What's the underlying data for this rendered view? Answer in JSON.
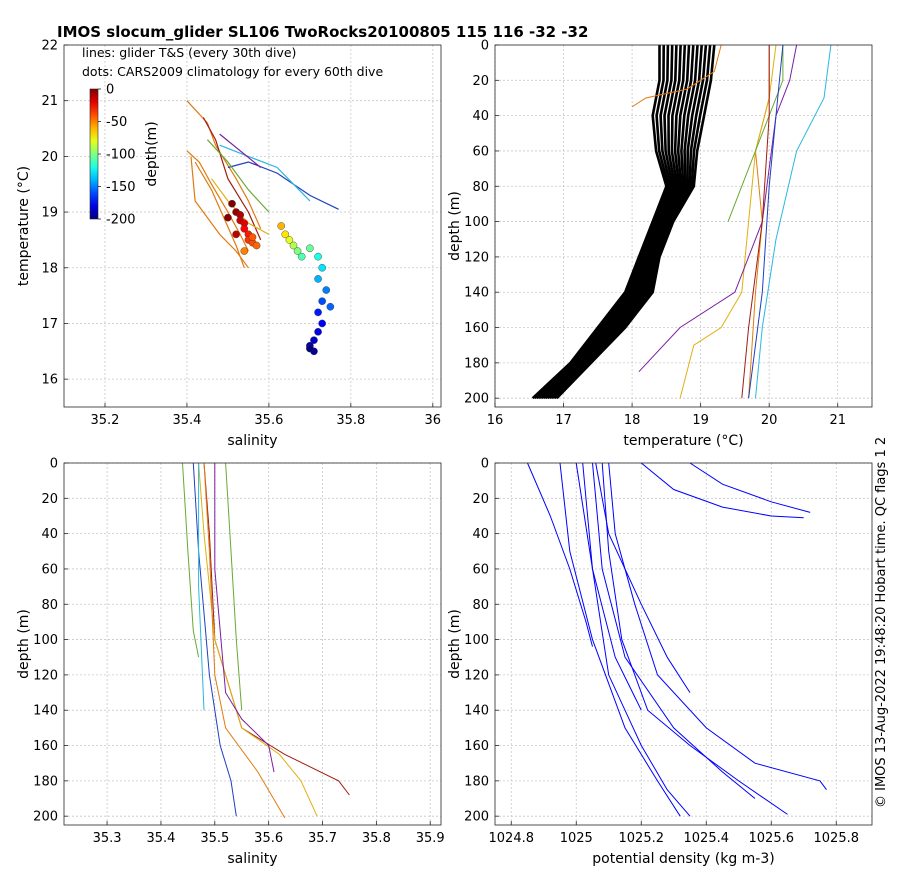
{
  "figure": {
    "title": "IMOS slocum_glider SL106 TwoRocks20100805 115  116  -32  -32",
    "side_note": "© IMOS 13-Aug-2022 19:48:20 Hobart time. QC flags 1  2"
  },
  "colors": {
    "glider_lines": [
      "#1f3fbf",
      "#e07b10",
      "#e0b010",
      "#7b1fa0",
      "#6aa832",
      "#2ab7e0",
      "#a01c10"
    ],
    "climatology_line": "#000000",
    "density_line": "#0000ff"
  },
  "chart_data": [
    {
      "id": "ts",
      "type": "scatter",
      "xlabel": "salinity",
      "ylabel": "temperature (°C)",
      "xlim": [
        35.1,
        36.02
      ],
      "ylim": [
        15.5,
        22
      ],
      "xticks": [
        35.2,
        35.4,
        35.6,
        35.8,
        36
      ],
      "yticks": [
        16,
        17,
        18,
        19,
        20,
        21,
        22
      ],
      "grid": true,
      "notes": [
        "lines: glider T&S (every 30th dive)",
        "dots: CARS2009 climatology for every 60th dive"
      ],
      "colorbar": {
        "label": "depth(m)",
        "ticks": [
          0,
          -50,
          -100,
          -150,
          -200
        ],
        "range": [
          -200,
          0
        ]
      },
      "series": [
        {
          "name": "glider T&S dive 1",
          "color": "#e07b10",
          "x": [
            35.4,
            35.45,
            35.47,
            35.52,
            35.55,
            35.58
          ],
          "y": [
            21.0,
            20.6,
            20.2,
            19.6,
            19.2,
            18.7
          ]
        },
        {
          "name": "glider T&S dive 2",
          "color": "#e07b10",
          "x": [
            35.4,
            35.43,
            35.46,
            35.5,
            35.53,
            35.55
          ],
          "y": [
            20.1,
            19.9,
            19.5,
            19.0,
            18.6,
            18.3
          ]
        },
        {
          "name": "glider T&S dive 3",
          "color": "#e07b10",
          "x": [
            35.41,
            35.42,
            35.45,
            35.48,
            35.52,
            35.55
          ],
          "y": [
            20.0,
            19.2,
            18.9,
            18.6,
            18.3,
            18.0
          ]
        },
        {
          "name": "glider T&S dive 4",
          "color": "#e07b10",
          "x": [
            35.42,
            35.46,
            35.49,
            35.52,
            35.54
          ],
          "y": [
            19.9,
            19.4,
            18.9,
            18.4,
            18.0
          ]
        },
        {
          "name": "glider T&S dive 5",
          "color": "#a01c10",
          "x": [
            35.44,
            35.47,
            35.5,
            35.55,
            35.58
          ],
          "y": [
            20.7,
            20.3,
            19.6,
            19.0,
            18.5
          ]
        },
        {
          "name": "glider T&S dive 6",
          "color": "#1f3fbf",
          "x": [
            35.5,
            35.55,
            35.62,
            35.7,
            35.77
          ],
          "y": [
            19.8,
            19.9,
            19.7,
            19.3,
            19.05
          ]
        },
        {
          "name": "glider T&S dive 7",
          "color": "#2ab7e0",
          "x": [
            35.48,
            35.55,
            35.62,
            35.66,
            35.7
          ],
          "y": [
            20.2,
            20.0,
            19.8,
            19.5,
            19.2
          ]
        },
        {
          "name": "glider T&S dive 8",
          "color": "#e0b010",
          "x": [
            35.46,
            35.5,
            35.55,
            35.6
          ],
          "y": [
            19.6,
            19.2,
            18.8,
            18.6
          ]
        },
        {
          "name": "glider T&S dive 9",
          "color": "#6aa832",
          "x": [
            35.45,
            35.5,
            35.55,
            35.6
          ],
          "y": [
            20.3,
            19.9,
            19.4,
            19.0
          ]
        },
        {
          "name": "glider T&S dive 10",
          "color": "#7b1fa0",
          "x": [
            35.48,
            35.53,
            35.58
          ],
          "y": [
            20.4,
            20.1,
            19.8
          ]
        }
      ],
      "climatology_dots": {
        "name": "CARS2009 climatology",
        "x": [
          35.51,
          35.52,
          35.53,
          35.53,
          35.54,
          35.54,
          35.55,
          35.55,
          35.56,
          35.57,
          35.52,
          35.5,
          35.54,
          35.56,
          35.63,
          35.64,
          35.65,
          35.66,
          35.67,
          35.68,
          35.7,
          35.72,
          35.73,
          35.72,
          35.74,
          35.73,
          35.75,
          35.72,
          35.73,
          35.72,
          35.71,
          35.7,
          35.71,
          35.7
        ],
        "y": [
          19.15,
          19.0,
          18.95,
          18.85,
          18.8,
          18.7,
          18.6,
          18.5,
          18.45,
          18.4,
          18.6,
          18.9,
          18.3,
          18.55,
          18.75,
          18.6,
          18.5,
          18.4,
          18.3,
          18.2,
          18.35,
          18.2,
          18.0,
          17.8,
          17.6,
          17.4,
          17.3,
          17.2,
          17.0,
          16.85,
          16.7,
          16.6,
          16.5,
          16.55
        ],
        "depth": [
          0,
          -5,
          -10,
          -15,
          -20,
          -25,
          -30,
          -35,
          -40,
          -45,
          -12,
          -2,
          -50,
          -42,
          -60,
          -70,
          -80,
          -90,
          -100,
          -110,
          -105,
          -120,
          -130,
          -140,
          -150,
          -160,
          -155,
          -170,
          -175,
          -180,
          -185,
          -190,
          -195,
          -200
        ]
      }
    },
    {
      "id": "temp_depth",
      "type": "line",
      "xlabel": "temperature (°C)",
      "ylabel": "depth (m)",
      "xlim": [
        16,
        21.5
      ],
      "ylim": [
        0,
        205
      ],
      "y_reversed": true,
      "xticks": [
        16,
        17,
        18,
        19,
        20,
        21
      ],
      "yticks": [
        0,
        20,
        40,
        60,
        80,
        100,
        120,
        140,
        160,
        180,
        200
      ],
      "grid": true,
      "climatology_band": {
        "name": "CARS2009 climatology",
        "depth": [
          0,
          20,
          40,
          60,
          80,
          100,
          120,
          140,
          160,
          180,
          200
        ],
        "left": [
          18.4,
          18.4,
          18.3,
          18.35,
          18.5,
          18.3,
          18.1,
          17.9,
          17.5,
          17.1,
          16.55
        ],
        "right": [
          19.2,
          19.15,
          19.05,
          18.95,
          18.9,
          18.6,
          18.4,
          18.3,
          17.9,
          17.4,
          16.9
        ]
      },
      "series": [
        {
          "name": "dive 1",
          "color": "#e07b10",
          "temperature": [
            20.0,
            20.0,
            19.8,
            19.9,
            19.8,
            19.7
          ],
          "depth": [
            0,
            30,
            60,
            100,
            140,
            200
          ]
        },
        {
          "name": "dive 2",
          "color": "#e0b010",
          "temperature": [
            20.1,
            20.0,
            19.8,
            19.7,
            19.6,
            19.3,
            18.9,
            18.7
          ],
          "depth": [
            0,
            30,
            60,
            100,
            140,
            160,
            170,
            200
          ]
        },
        {
          "name": "dive 3",
          "color": "#7b1fa0",
          "temperature": [
            20.4,
            20.3,
            20.1,
            19.9,
            19.5,
            18.7,
            18.1
          ],
          "depth": [
            0,
            20,
            40,
            100,
            140,
            160,
            185
          ]
        },
        {
          "name": "dive 4",
          "color": "#6aa832",
          "temperature": [
            20.2,
            20.2,
            20.0,
            19.7,
            19.4
          ],
          "depth": [
            0,
            20,
            40,
            70,
            100
          ]
        },
        {
          "name": "dive 5",
          "color": "#2ab7e0",
          "temperature": [
            20.9,
            20.8,
            20.4,
            20.1,
            19.9,
            19.8
          ],
          "depth": [
            0,
            30,
            60,
            110,
            160,
            200
          ]
        },
        {
          "name": "dive 6",
          "color": "#1f3fbf",
          "temperature": [
            20.2,
            20.1,
            20.0,
            19.9,
            19.7
          ],
          "depth": [
            0,
            40,
            80,
            140,
            200
          ]
        },
        {
          "name": "dive 7",
          "color": "#a01c10",
          "temperature": [
            20.0,
            20.0,
            19.9,
            19.7,
            19.6
          ],
          "depth": [
            0,
            40,
            100,
            160,
            200
          ]
        },
        {
          "name": "dive 8",
          "color": "#e07b10",
          "temperature": [
            19.3,
            19.2,
            18.8,
            18.2,
            18.0
          ],
          "depth": [
            0,
            15,
            25,
            30,
            35
          ]
        }
      ]
    },
    {
      "id": "sal_depth",
      "type": "line",
      "xlabel": "salinity",
      "ylabel": "depth (m)",
      "xlim": [
        35.22,
        35.92
      ],
      "ylim": [
        0,
        205
      ],
      "y_reversed": true,
      "xticks": [
        35.3,
        35.4,
        35.5,
        35.6,
        35.7,
        35.8,
        35.9
      ],
      "yticks": [
        0,
        20,
        40,
        60,
        80,
        100,
        120,
        140,
        160,
        180,
        200
      ],
      "grid": true,
      "series": [
        {
          "name": "dive 1",
          "color": "#a01c10",
          "salinity": [
            35.48,
            35.49,
            35.5,
            35.55,
            35.63,
            35.73,
            35.75
          ],
          "depth": [
            0,
            40,
            100,
            150,
            165,
            180,
            188
          ]
        },
        {
          "name": "dive 2",
          "color": "#e0b010",
          "salinity": [
            35.47,
            35.48,
            35.5,
            35.55,
            35.62,
            35.66,
            35.69
          ],
          "depth": [
            0,
            40,
            100,
            150,
            165,
            180,
            200
          ]
        },
        {
          "name": "dive 3",
          "color": "#1f3fbf",
          "salinity": [
            35.46,
            35.47,
            35.49,
            35.51,
            35.53,
            35.54
          ],
          "depth": [
            0,
            50,
            120,
            160,
            180,
            200
          ]
        },
        {
          "name": "dive 4",
          "color": "#e07b10",
          "salinity": [
            35.48,
            35.49,
            35.5,
            35.52,
            35.58,
            35.63
          ],
          "depth": [
            0,
            50,
            120,
            150,
            175,
            201
          ]
        },
        {
          "name": "dive 5",
          "color": "#7b1fa0",
          "salinity": [
            35.5,
            35.5,
            35.52,
            35.55,
            35.6,
            35.61
          ],
          "depth": [
            0,
            60,
            130,
            145,
            160,
            175
          ]
        },
        {
          "name": "dive 6",
          "color": "#6aa832",
          "salinity": [
            35.44,
            35.45,
            35.46,
            35.47
          ],
          "depth": [
            0,
            50,
            95,
            110
          ]
        },
        {
          "name": "dive 7",
          "color": "#6aa832",
          "salinity": [
            35.52,
            35.53,
            35.54,
            35.55
          ],
          "depth": [
            0,
            50,
            100,
            140
          ]
        },
        {
          "name": "dive 8",
          "color": "#2ab7e0",
          "salinity": [
            35.47,
            35.47,
            35.48
          ],
          "depth": [
            0,
            70,
            140
          ]
        }
      ]
    },
    {
      "id": "dens_depth",
      "type": "line",
      "xlabel": "potential density (kg m-3)",
      "ylabel": "depth (m)",
      "xlim": [
        1024.75,
        1025.91
      ],
      "ylim": [
        0,
        205
      ],
      "y_reversed": true,
      "xticks": [
        1024.8,
        1025,
        1025.2,
        1025.4,
        1025.6,
        1025.8
      ],
      "yticks": [
        0,
        20,
        40,
        60,
        80,
        100,
        120,
        140,
        160,
        180,
        200
      ],
      "grid": true,
      "series": [
        {
          "name": "dive 1",
          "color": "#0000ff",
          "density": [
            1025.1,
            1025.12,
            1025.18,
            1025.25,
            1025.4,
            1025.55,
            1025.75,
            1025.77
          ],
          "depth": [
            0,
            40,
            80,
            120,
            150,
            170,
            180,
            185
          ]
        },
        {
          "name": "dive 2",
          "color": "#0000ff",
          "density": [
            1025.08,
            1025.1,
            1025.14,
            1025.22,
            1025.35,
            1025.5,
            1025.65
          ],
          "depth": [
            0,
            50,
            100,
            140,
            160,
            180,
            199
          ]
        },
        {
          "name": "dive 3",
          "color": "#0000ff",
          "density": [
            1025.05,
            1025.08,
            1025.15,
            1025.3,
            1025.45,
            1025.55
          ],
          "depth": [
            0,
            60,
            110,
            150,
            175,
            190
          ]
        },
        {
          "name": "dive 4",
          "color": "#0000ff",
          "density": [
            1025.02,
            1025.05,
            1025.1,
            1025.2,
            1025.28,
            1025.35
          ],
          "depth": [
            0,
            60,
            120,
            160,
            185,
            200
          ]
        },
        {
          "name": "dive 5",
          "color": "#0000ff",
          "density": [
            1024.95,
            1024.98,
            1025.05,
            1025.15,
            1025.25,
            1025.32
          ],
          "depth": [
            0,
            50,
            100,
            150,
            180,
            200
          ]
        },
        {
          "name": "dive 6",
          "color": "#0000ff",
          "density": [
            1024.85,
            1024.92,
            1024.98,
            1025.03,
            1025.05
          ],
          "depth": [
            0,
            30,
            60,
            90,
            104
          ]
        },
        {
          "name": "dive 7",
          "color": "#0000ff",
          "density": [
            1025.06,
            1025.1,
            1025.2,
            1025.28,
            1025.35
          ],
          "depth": [
            0,
            40,
            80,
            110,
            130
          ]
        },
        {
          "name": "dive 8",
          "color": "#0000ff",
          "density": [
            1025.2,
            1025.3,
            1025.45,
            1025.6,
            1025.7
          ],
          "depth": [
            0,
            15,
            25,
            30,
            31
          ]
        },
        {
          "name": "dive 9",
          "color": "#0000ff",
          "density": [
            1025.35,
            1025.45,
            1025.6,
            1025.72
          ],
          "depth": [
            0,
            12,
            22,
            28
          ]
        },
        {
          "name": "dive 10",
          "color": "#0000ff",
          "density": [
            1025.0,
            1025.05,
            1025.12,
            1025.2
          ],
          "depth": [
            0,
            60,
            110,
            140
          ]
        }
      ]
    }
  ]
}
